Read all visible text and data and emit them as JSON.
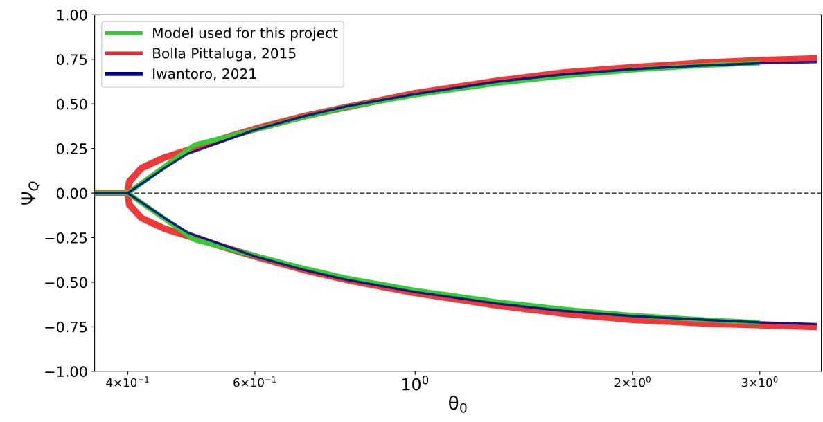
{
  "chart_data": {
    "type": "line",
    "xlabel": "θ$_{0}$",
    "ylabel": "Ψ$_{Q}$",
    "log": "x",
    "grid": false,
    "legend": "top left",
    "marker": "none",
    "line_style": "solid",
    "xlim": [
      0.36,
      3.65
    ],
    "ylim": [
      -1.0,
      1.0
    ],
    "xticks": [
      {
        "value": 0.4,
        "label": "4×10$^{−1}$"
      },
      {
        "value": 0.6,
        "label": "6×10$^{−1}$"
      },
      {
        "value": 1,
        "label": "10$^{0}$"
      },
      {
        "value": 2,
        "label": "2×10$^{0}$"
      },
      {
        "value": 3,
        "label": "3×10$^{0}$"
      }
    ],
    "yticks": [
      {
        "value": -1.0,
        "label": "−1.00"
      },
      {
        "value": -0.75,
        "label": "−0.75"
      },
      {
        "value": -0.5,
        "label": "−0.50"
      },
      {
        "value": -0.25,
        "label": "−0.25"
      },
      {
        "value": 0,
        "label": "0.00"
      },
      {
        "value": 0.25,
        "label": "0.25"
      },
      {
        "value": 0.5,
        "label": "0.50"
      },
      {
        "value": 0.75,
        "label": "0.75"
      },
      {
        "value": 1.0,
        "label": "1.00"
      }
    ],
    "ref_lines": [
      {
        "axis": "y",
        "value": 0,
        "color": "#555555",
        "line_style": "dashed"
      }
    ],
    "series": [
      {
        "name": "Model used for this project",
        "color": "#33cc33",
        "x": [
          0.36,
          0.4,
          0.495,
          0.6,
          0.7,
          0.8,
          1.0,
          1.3,
          1.6,
          2.0,
          2.5,
          3.0,
          null,
          0.4,
          0.495,
          0.6,
          0.7,
          0.8,
          1.0,
          1.3,
          1.6,
          2.0,
          2.5,
          3.0
        ],
        "values": [
          0,
          0,
          0.27,
          0.355,
          0.425,
          0.48,
          0.55,
          0.615,
          0.655,
          0.69,
          0.715,
          0.73,
          null,
          0,
          -0.262,
          -0.35,
          -0.42,
          -0.475,
          -0.545,
          -0.61,
          -0.65,
          -0.685,
          -0.71,
          -0.725
        ]
      },
      {
        "name": "Bolla Pittaluga, 2015",
        "color": "#ee2222",
        "x": [
          0.36,
          0.4,
          0.402,
          0.418,
          0.45,
          0.484,
          0.55,
          0.6,
          0.7,
          0.8,
          1.0,
          1.3,
          1.6,
          2.0,
          2.5,
          3.0,
          3.6,
          null,
          0.4,
          0.402,
          0.418,
          0.45,
          0.484,
          0.55,
          0.6,
          0.7,
          0.8,
          1.0,
          1.3,
          1.6,
          2.0,
          2.5,
          3.0,
          3.6
        ],
        "values": [
          0,
          0,
          0.064,
          0.14,
          0.2,
          0.24,
          0.315,
          0.36,
          0.43,
          0.48,
          0.56,
          0.63,
          0.675,
          0.705,
          0.73,
          0.745,
          0.755,
          null,
          0,
          -0.065,
          -0.14,
          -0.2,
          -0.24,
          -0.31,
          -0.355,
          -0.43,
          -0.485,
          -0.56,
          -0.63,
          -0.675,
          -0.71,
          -0.73,
          -0.74,
          -0.75
        ]
      },
      {
        "name": "Iwantoro, 2021",
        "color": "#00008b",
        "x": [
          0.36,
          0.4,
          0.45,
          0.484,
          0.55,
          0.6,
          0.7,
          0.8,
          1.0,
          1.3,
          1.6,
          2.0,
          2.5,
          3.0,
          3.6,
          null,
          0.4,
          0.45,
          0.484,
          0.55,
          0.6,
          0.7,
          0.8,
          1.0,
          1.3,
          1.6,
          2.0,
          2.5,
          3.0,
          3.6
        ],
        "values": [
          0,
          0,
          0.14,
          0.22,
          0.3,
          0.355,
          0.43,
          0.485,
          0.555,
          0.625,
          0.665,
          0.695,
          0.715,
          0.728,
          0.735,
          null,
          0,
          -0.14,
          -0.22,
          -0.3,
          -0.355,
          -0.43,
          -0.485,
          -0.555,
          -0.62,
          -0.66,
          -0.69,
          -0.71,
          -0.725,
          -0.735
        ]
      }
    ]
  }
}
